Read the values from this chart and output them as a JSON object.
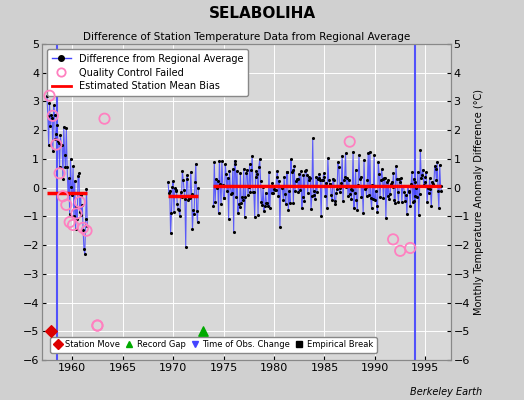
{
  "title": "SELABOLIHA",
  "subtitle": "Difference of Station Temperature Data from Regional Average",
  "ylabel": "Monthly Temperature Anomaly Difference (°C)",
  "xlim": [
    1957.0,
    1997.5
  ],
  "ylim": [
    -6,
    5
  ],
  "yticks": [
    -6,
    -5,
    -4,
    -3,
    -2,
    -1,
    0,
    1,
    2,
    3,
    4,
    5
  ],
  "xticks": [
    1960,
    1965,
    1970,
    1975,
    1980,
    1985,
    1990,
    1995
  ],
  "bg_color": "#d0d0d0",
  "plot_bg_color": "#d8d8d8",
  "grid_color": "#ffffff",
  "line_color": "#4444ff",
  "bias_color": "#ff0000",
  "vertical_line_color": "#4444ff",
  "footnote": "Berkeley Earth",
  "seg1_bias": -0.2,
  "seg2_bias": -0.3,
  "seg3_bias": 0.05,
  "seg4_bias": 0.05,
  "qc_failed": [
    [
      1957.75,
      3.2
    ],
    [
      1958.08,
      2.5
    ],
    [
      1958.42,
      1.5
    ],
    [
      1958.75,
      0.5
    ],
    [
      1959.08,
      -0.3
    ],
    [
      1959.42,
      -0.6
    ],
    [
      1959.75,
      -1.2
    ],
    [
      1960.08,
      -1.3
    ],
    [
      1960.42,
      -0.9
    ],
    [
      1960.75,
      -0.5
    ],
    [
      1961.08,
      -1.4
    ],
    [
      1961.42,
      -1.5
    ],
    [
      1962.5,
      -4.8
    ],
    [
      1963.2,
      2.4
    ],
    [
      1987.5,
      1.6
    ],
    [
      1991.8,
      -1.8
    ],
    [
      1992.5,
      -2.2
    ],
    [
      1993.5,
      -2.1
    ]
  ]
}
